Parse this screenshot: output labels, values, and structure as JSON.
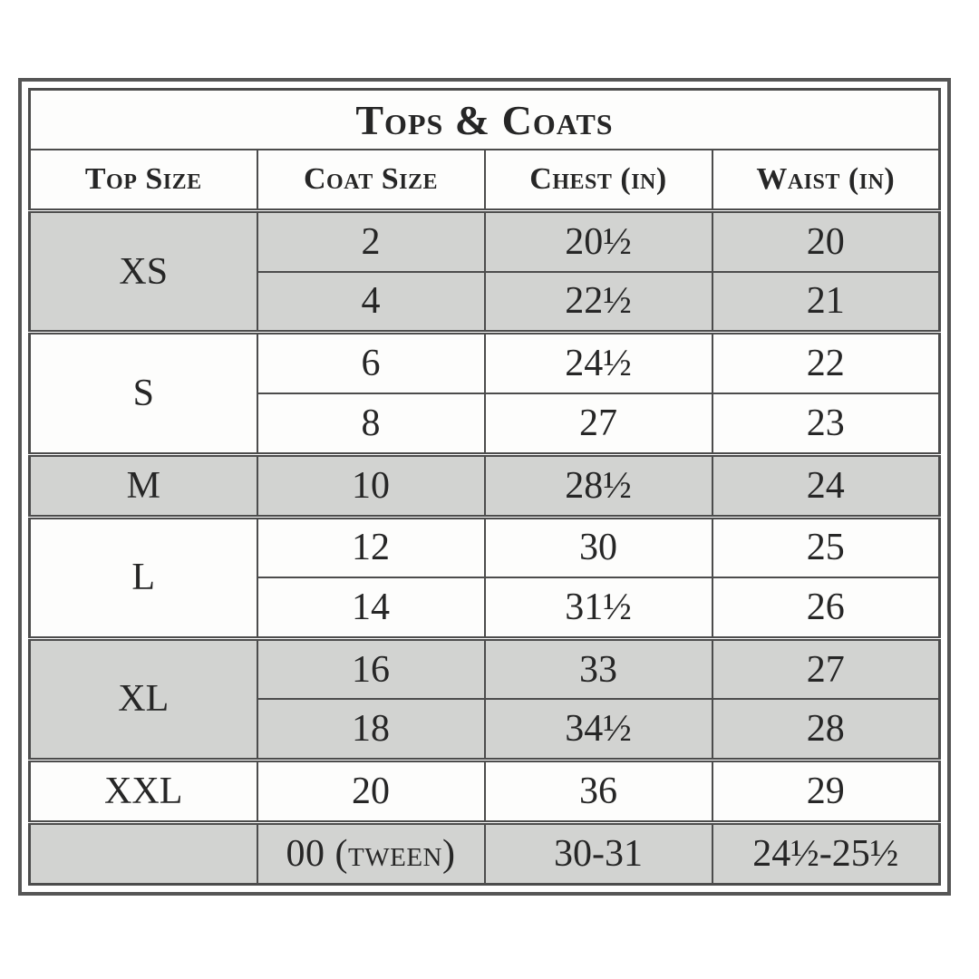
{
  "title": "Tops & Coats",
  "columns": [
    "Top Size",
    "Coat Size",
    "Chest (in)",
    "Waist (in)"
  ],
  "groups": [
    {
      "top_size": "XS",
      "shaded": true,
      "rows": [
        {
          "coat": "2",
          "chest": "20½",
          "waist": "20"
        },
        {
          "coat": "4",
          "chest": "22½",
          "waist": "21"
        }
      ]
    },
    {
      "top_size": "S",
      "shaded": false,
      "rows": [
        {
          "coat": "6",
          "chest": "24½",
          "waist": "22"
        },
        {
          "coat": "8",
          "chest": "27",
          "waist": "23"
        }
      ]
    },
    {
      "top_size": "M",
      "shaded": true,
      "rows": [
        {
          "coat": "10",
          "chest": "28½",
          "waist": "24"
        }
      ]
    },
    {
      "top_size": "L",
      "shaded": false,
      "rows": [
        {
          "coat": "12",
          "chest": "30",
          "waist": "25"
        },
        {
          "coat": "14",
          "chest": "31½",
          "waist": "26"
        }
      ]
    },
    {
      "top_size": "XL",
      "shaded": true,
      "rows": [
        {
          "coat": "16",
          "chest": "33",
          "waist": "27"
        },
        {
          "coat": "18",
          "chest": "34½",
          "waist": "28"
        }
      ]
    },
    {
      "top_size": "XXL",
      "shaded": false,
      "rows": [
        {
          "coat": "20",
          "chest": "36",
          "waist": "29"
        }
      ]
    },
    {
      "top_size": "",
      "shaded": true,
      "rows": [
        {
          "coat": "00 (tween)",
          "chest": "30-31",
          "waist": "24½-25½"
        }
      ]
    }
  ],
  "colors": {
    "shaded_row": "#d2d3d1",
    "row_background": "#fdfdfc",
    "border": "#4c4c4c",
    "text": "#262626",
    "page_background": "#ffffff"
  }
}
